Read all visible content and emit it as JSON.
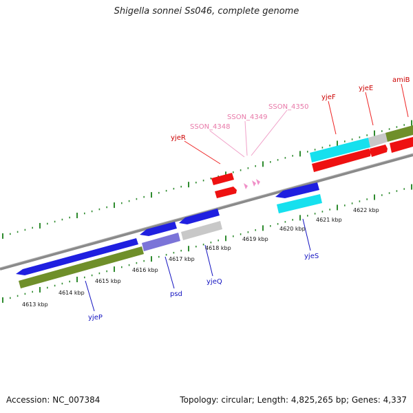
{
  "title": "Shigella sonnei Ss046, complete genome",
  "footer": {
    "accession": "Accession: NC_007384",
    "stats": "Topology: circular; Length: 4,825,265 bp; Genes: 4,337"
  },
  "colors": {
    "backbone": "#8a8a8a",
    "tick": "#2e8b2e",
    "gene_blue": "#1f1fe0",
    "gene_red": "#ee1111",
    "gene_cyan": "#16e0ee",
    "cds_olive": "#6f8f2a",
    "gene_purple": "#7b74d8",
    "gene_grey": "#c8c8c8",
    "rna_pink": "#f090c8",
    "label_red": "#cc0000",
    "label_blue": "#1010c0",
    "label_pink": "#e878a8"
  },
  "scale_labels": [
    "4613 kbp",
    "4614 kbp",
    "4615 kbp",
    "4616 kbp",
    "4617 kbp",
    "4618 kbp",
    "4619 kbp",
    "4620 kbp",
    "4621 kbp",
    "4622 kbp"
  ],
  "labels": {
    "forward": [
      "yjeR",
      "SSON_4348",
      "SSON_4349",
      "SSON_4350",
      "yjeF",
      "yjeE",
      "amiB"
    ],
    "reverse": [
      "yjeP",
      "psd",
      "yjeQ",
      "yjeS"
    ]
  }
}
